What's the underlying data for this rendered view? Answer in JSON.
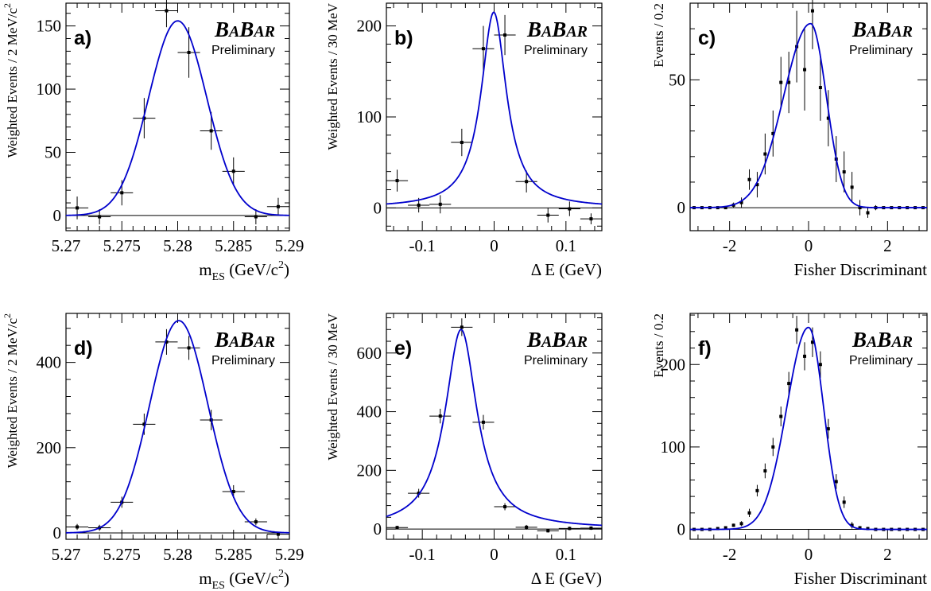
{
  "logo": {
    "text": "BABAR",
    "subtitle": "Preliminary"
  },
  "chart_data": [
    {
      "panel": "a)",
      "type": "scatter",
      "xlabel": "m_ES (GeV/c^2)",
      "ylabel": "Weighted Events / 2 MeV/c^2",
      "xlim": [
        5.27,
        5.29
      ],
      "ylim": [
        -12,
        168
      ],
      "xticks": [
        5.27,
        5.275,
        5.28,
        5.285,
        5.29
      ],
      "xtick_labels": [
        "5.27",
        "5.275",
        "5.28",
        "5.285",
        "5.29"
      ],
      "yticks": [
        0,
        50,
        100,
        150
      ],
      "points": [
        {
          "x": 5.271,
          "y": 6,
          "err": 9
        },
        {
          "x": 5.273,
          "y": -1,
          "err": 6
        },
        {
          "x": 5.275,
          "y": 18,
          "err": 10
        },
        {
          "x": 5.277,
          "y": 77,
          "err": 16
        },
        {
          "x": 5.279,
          "y": 162,
          "err": 13
        },
        {
          "x": 5.281,
          "y": 129,
          "err": 20
        },
        {
          "x": 5.283,
          "y": 67,
          "err": 15
        },
        {
          "x": 5.285,
          "y": 35,
          "err": 11
        },
        {
          "x": 5.287,
          "y": -1,
          "err": 6
        },
        {
          "x": 5.289,
          "y": 7,
          "err": 7
        }
      ],
      "xerr": 0.001,
      "fit": {
        "model": "gaussian",
        "mean": 5.28,
        "sigma": 0.0026,
        "amp": 154,
        "base": 0
      }
    },
    {
      "panel": "b)",
      "type": "scatter",
      "xlabel": "Δ E (GeV)",
      "ylabel": "Weighted Events / 30 MeV",
      "xlim": [
        -0.15,
        0.15
      ],
      "ylim": [
        -25,
        225
      ],
      "xticks": [
        -0.1,
        0,
        0.1
      ],
      "xtick_labels": [
        "-0.1",
        "0",
        "0.1"
      ],
      "yticks": [
        0,
        100,
        200
      ],
      "points": [
        {
          "x": -0.135,
          "y": 30,
          "err": 12
        },
        {
          "x": -0.105,
          "y": 3,
          "err": 8
        },
        {
          "x": -0.075,
          "y": 4,
          "err": 10
        },
        {
          "x": -0.045,
          "y": 72,
          "err": 15
        },
        {
          "x": -0.015,
          "y": 175,
          "err": 25
        },
        {
          "x": 0.015,
          "y": 190,
          "err": 22
        },
        {
          "x": 0.045,
          "y": 29,
          "err": 12
        },
        {
          "x": 0.075,
          "y": -8,
          "err": 8
        },
        {
          "x": 0.105,
          "y": -1,
          "err": 8
        },
        {
          "x": 0.135,
          "y": -12,
          "err": 6
        }
      ],
      "xerr": 0.015,
      "fit": {
        "model": "lorentzian",
        "mean": -0.0005,
        "gamma": 0.0215,
        "amp": 215,
        "base": 0
      }
    },
    {
      "panel": "c)",
      "type": "scatter",
      "xlabel": "Fisher Discriminant",
      "ylabel": "Events / 0.2",
      "xlim": [
        -3,
        3
      ],
      "ylim": [
        -9,
        80
      ],
      "xticks": [
        -2,
        0,
        2
      ],
      "xtick_labels": [
        "-2",
        "0",
        "2"
      ],
      "yticks": [
        0,
        50
      ],
      "points": [
        {
          "x": -2.9,
          "y": 0,
          "err": 0.3
        },
        {
          "x": -2.7,
          "y": 0,
          "err": 0.3
        },
        {
          "x": -2.5,
          "y": 0,
          "err": 0.3
        },
        {
          "x": -2.3,
          "y": 0,
          "err": 0.3
        },
        {
          "x": -2.1,
          "y": 0,
          "err": 0.5
        },
        {
          "x": -1.9,
          "y": 1,
          "err": 1
        },
        {
          "x": -1.7,
          "y": 2,
          "err": 2
        },
        {
          "x": -1.5,
          "y": 11,
          "err": 4
        },
        {
          "x": -1.3,
          "y": 9,
          "err": 5
        },
        {
          "x": -1.1,
          "y": 21,
          "err": 8
        },
        {
          "x": -0.9,
          "y": 29,
          "err": 9
        },
        {
          "x": -0.7,
          "y": 49,
          "err": 10
        },
        {
          "x": -0.5,
          "y": 49,
          "err": 12
        },
        {
          "x": -0.3,
          "y": 63,
          "err": 14
        },
        {
          "x": -0.1,
          "y": 54,
          "err": 16
        },
        {
          "x": 0.1,
          "y": 77,
          "err": 15
        },
        {
          "x": 0.3,
          "y": 47,
          "err": 13
        },
        {
          "x": 0.5,
          "y": 35,
          "err": 11
        },
        {
          "x": 0.7,
          "y": 19,
          "err": 9
        },
        {
          "x": 0.9,
          "y": 14,
          "err": 8
        },
        {
          "x": 1.1,
          "y": 8,
          "err": 6
        },
        {
          "x": 1.3,
          "y": 0,
          "err": 3
        },
        {
          "x": 1.5,
          "y": -2,
          "err": 2
        },
        {
          "x": 1.7,
          "y": 0,
          "err": 1
        },
        {
          "x": 1.9,
          "y": 0,
          "err": 0.5
        },
        {
          "x": 2.1,
          "y": 0,
          "err": 0.3
        },
        {
          "x": 2.3,
          "y": 0,
          "err": 0.3
        },
        {
          "x": 2.5,
          "y": 0,
          "err": 0.3
        },
        {
          "x": 2.7,
          "y": 0,
          "err": 0.3
        },
        {
          "x": 2.9,
          "y": 0,
          "err": 0.3
        }
      ],
      "xerr": 0,
      "fit": {
        "model": "bifurcated-gaussian",
        "mean": 0.05,
        "sigmaL": 0.68,
        "sigmaR": 0.4,
        "amp": 72,
        "base": 0
      }
    },
    {
      "panel": "d)",
      "type": "scatter",
      "xlabel": "m_ES (GeV/c^2)",
      "ylabel": "Weighted Events / 2 MeV/c^2",
      "xlim": [
        5.27,
        5.29
      ],
      "ylim": [
        -15,
        515
      ],
      "xticks": [
        5.27,
        5.275,
        5.28,
        5.285,
        5.29
      ],
      "xtick_labels": [
        "5.27",
        "5.275",
        "5.28",
        "5.285",
        "5.29"
      ],
      "yticks": [
        0,
        200,
        400
      ],
      "points": [
        {
          "x": 5.271,
          "y": 14,
          "err": 7
        },
        {
          "x": 5.273,
          "y": 12,
          "err": 7
        },
        {
          "x": 5.275,
          "y": 72,
          "err": 13
        },
        {
          "x": 5.277,
          "y": 255,
          "err": 25
        },
        {
          "x": 5.279,
          "y": 448,
          "err": 30
        },
        {
          "x": 5.281,
          "y": 434,
          "err": 28
        },
        {
          "x": 5.283,
          "y": 265,
          "err": 24
        },
        {
          "x": 5.285,
          "y": 97,
          "err": 15
        },
        {
          "x": 5.287,
          "y": 26,
          "err": 8
        },
        {
          "x": 5.289,
          "y": -3,
          "err": 4
        }
      ],
      "xerr": 0.001,
      "fit": {
        "model": "gaussian",
        "mean": 5.2801,
        "sigma": 0.0026,
        "amp": 498,
        "base": 0
      }
    },
    {
      "panel": "e)",
      "type": "scatter",
      "xlabel": "Δ E (GeV)",
      "ylabel": "Weighted Events / 30 MeV",
      "xlim": [
        -0.15,
        0.15
      ],
      "ylim": [
        -35,
        735
      ],
      "xticks": [
        -0.1,
        0,
        0.1
      ],
      "xtick_labels": [
        "-0.1",
        "0",
        "0.1"
      ],
      "yticks": [
        0,
        200,
        400,
        600
      ],
      "points": [
        {
          "x": -0.135,
          "y": 5,
          "err": 6
        },
        {
          "x": -0.105,
          "y": 122,
          "err": 15
        },
        {
          "x": -0.075,
          "y": 385,
          "err": 25
        },
        {
          "x": -0.045,
          "y": 688,
          "err": 30
        },
        {
          "x": -0.015,
          "y": 364,
          "err": 25
        },
        {
          "x": 0.015,
          "y": 76,
          "err": 12
        },
        {
          "x": 0.045,
          "y": 6,
          "err": 8
        },
        {
          "x": 0.075,
          "y": -6,
          "err": 6
        },
        {
          "x": 0.105,
          "y": 2,
          "err": 6
        },
        {
          "x": 0.135,
          "y": 3,
          "err": 6
        }
      ],
      "xerr": 0.015,
      "fit": {
        "model": "lorentzian",
        "mean": -0.046,
        "gamma": 0.027,
        "amp": 680,
        "base": 0
      }
    },
    {
      "panel": "f)",
      "type": "scatter",
      "xlabel": "Fisher Discriminant",
      "ylabel": "Events / 0.2",
      "xlim": [
        -3,
        3
      ],
      "ylim": [
        -12,
        262
      ],
      "xticks": [
        -2,
        0,
        2
      ],
      "xtick_labels": [
        "-2",
        "0",
        "2"
      ],
      "yticks": [
        0,
        100,
        200
      ],
      "points": [
        {
          "x": -2.9,
          "y": 0,
          "err": 0.5
        },
        {
          "x": -2.7,
          "y": 0,
          "err": 0.5
        },
        {
          "x": -2.5,
          "y": 0,
          "err": 0.5
        },
        {
          "x": -2.3,
          "y": 1,
          "err": 1
        },
        {
          "x": -2.1,
          "y": 2,
          "err": 1.5
        },
        {
          "x": -1.9,
          "y": 5,
          "err": 2
        },
        {
          "x": -1.7,
          "y": 7,
          "err": 3
        },
        {
          "x": -1.5,
          "y": 20,
          "err": 5
        },
        {
          "x": -1.3,
          "y": 47,
          "err": 7
        },
        {
          "x": -1.1,
          "y": 71,
          "err": 9
        },
        {
          "x": -0.9,
          "y": 100,
          "err": 11
        },
        {
          "x": -0.7,
          "y": 137,
          "err": 12
        },
        {
          "x": -0.5,
          "y": 177,
          "err": 14
        },
        {
          "x": -0.3,
          "y": 242,
          "err": 17
        },
        {
          "x": -0.1,
          "y": 210,
          "err": 17
        },
        {
          "x": 0.1,
          "y": 227,
          "err": 18
        },
        {
          "x": 0.3,
          "y": 200,
          "err": 16
        },
        {
          "x": 0.5,
          "y": 122,
          "err": 12
        },
        {
          "x": 0.7,
          "y": 58,
          "err": 9
        },
        {
          "x": 0.9,
          "y": 33,
          "err": 7
        },
        {
          "x": 1.1,
          "y": 5,
          "err": 4
        },
        {
          "x": 1.3,
          "y": 2,
          "err": 2
        },
        {
          "x": 1.5,
          "y": 1,
          "err": 1
        },
        {
          "x": 1.7,
          "y": 0,
          "err": 0.5
        },
        {
          "x": 1.9,
          "y": 0,
          "err": 0.5
        },
        {
          "x": 2.1,
          "y": 0,
          "err": 0.5
        },
        {
          "x": 2.3,
          "y": 0,
          "err": 0.5
        },
        {
          "x": 2.5,
          "y": 0,
          "err": 0.5
        },
        {
          "x": 2.7,
          "y": 0,
          "err": 0.5
        },
        {
          "x": 2.9,
          "y": 0,
          "err": 0.5
        }
      ],
      "xerr": 0,
      "fit": {
        "model": "bifurcated-gaussian",
        "mean": 0.0,
        "sigmaL": 0.55,
        "sigmaR": 0.38,
        "amp": 245,
        "base": 0
      }
    }
  ],
  "colors": {
    "fit": "#0000cc",
    "data": "#000000",
    "baseline": "#000000"
  }
}
